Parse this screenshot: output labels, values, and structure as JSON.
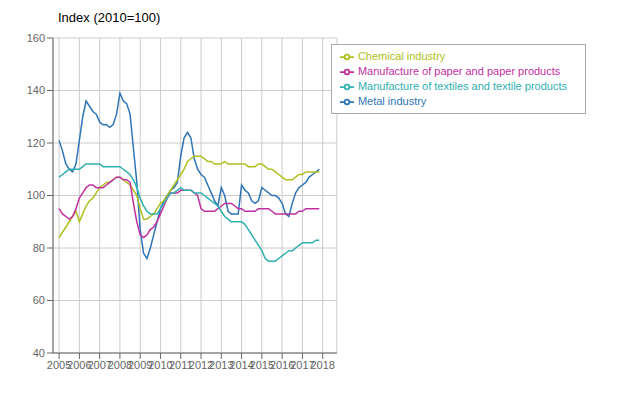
{
  "chart_data": {
    "type": "line",
    "title": "Index (2010=100)",
    "x": [
      2005,
      2005.1666666667,
      2005.3333333333,
      2005.5,
      2005.6666666667,
      2005.8333333333,
      2006,
      2006.1666666667,
      2006.3333333333,
      2006.5,
      2006.6666666667,
      2006.8333333333,
      2007,
      2007.1666666667,
      2007.3333333333,
      2007.5,
      2007.6666666667,
      2007.8333333333,
      2008,
      2008.1666666667,
      2008.3333333333,
      2008.5,
      2008.6666666667,
      2008.8333333333,
      2009,
      2009.1666666667,
      2009.3333333333,
      2009.5,
      2009.6666666667,
      2009.8333333333,
      2010,
      2010.1666666667,
      2010.3333333333,
      2010.5,
      2010.6666666667,
      2010.8333333333,
      2011,
      2011.1666666667,
      2011.3333333333,
      2011.5,
      2011.6666666667,
      2011.8333333333,
      2012,
      2012.1666666667,
      2012.3333333333,
      2012.5,
      2012.6666666667,
      2012.8333333333,
      2013,
      2013.1666666667,
      2013.3333333333,
      2013.5,
      2013.6666666667,
      2013.8333333333,
      2014,
      2014.1666666667,
      2014.3333333333,
      2014.5,
      2014.6666666667,
      2014.8333333333,
      2015,
      2015.1666666667,
      2015.3333333333,
      2015.5,
      2015.6666666667,
      2015.8333333333,
      2016,
      2016.1666666667,
      2016.3333333333,
      2016.5,
      2016.6666666667,
      2016.8333333333,
      2017,
      2017.1666666667,
      2017.3333333333,
      2017.5,
      2017.6666666667,
      2017.8333333333
    ],
    "xlim": [
      2004.7,
      2018.7
    ],
    "xticks": [
      2005,
      2006,
      2007,
      2008,
      2009,
      2010,
      2011,
      2012,
      2013,
      2014,
      2015,
      2016,
      2017,
      2018
    ],
    "ylim": [
      40,
      160
    ],
    "yticks": [
      40,
      60,
      80,
      100,
      120,
      140,
      160
    ],
    "grid": true,
    "legend": "upper right",
    "series": [
      {
        "name": "Metal industry",
        "color": "#2e75b6",
        "values": [
          121,
          117,
          112,
          110,
          109,
          112,
          121,
          130,
          136,
          134,
          132,
          131,
          128,
          127,
          127,
          126,
          127,
          131,
          139,
          136,
          135,
          131,
          118,
          105,
          87,
          78,
          76,
          80,
          85,
          90,
          95,
          98,
          100,
          102,
          103,
          105,
          115,
          122,
          124,
          122,
          114,
          110,
          108,
          107,
          104,
          101,
          98,
          96,
          103,
          100,
          94,
          93,
          93,
          93,
          104,
          102,
          101,
          98,
          97,
          98,
          103,
          102,
          101,
          100,
          100,
          99,
          97,
          93,
          92,
          97,
          101,
          103,
          104,
          105,
          107,
          108,
          109,
          110
        ]
      },
      {
        "name": "Chemical industry",
        "color": "#b0c020",
        "values": [
          84,
          86,
          88,
          90,
          92,
          94,
          90,
          93,
          96,
          98,
          99,
          101,
          103,
          104,
          105,
          105,
          106,
          107,
          107,
          106,
          105,
          104,
          102,
          100,
          95,
          91,
          91,
          92,
          93,
          95,
          97,
          98,
          100,
          102,
          104,
          106,
          108,
          110,
          113,
          114,
          115,
          115,
          115,
          114,
          113,
          113,
          112,
          112,
          112,
          113,
          112,
          112,
          112,
          112,
          112,
          112,
          111,
          111,
          111,
          112,
          112,
          111,
          110,
          110,
          109,
          108,
          107,
          106,
          106,
          106,
          107,
          108,
          108,
          109,
          109,
          109,
          109,
          109
        ]
      },
      {
        "name": "Manufacture of paper and paper products",
        "color": "#c030a0",
        "values": [
          95,
          93,
          92,
          91,
          92,
          95,
          99,
          101,
          103,
          104,
          104,
          103,
          103,
          103,
          104,
          105,
          106,
          107,
          107,
          106,
          106,
          105,
          97,
          90,
          85,
          84,
          85,
          87,
          88,
          90,
          93,
          96,
          99,
          101,
          101,
          101,
          102,
          102,
          102,
          102,
          101,
          100,
          95,
          94,
          94,
          94,
          94,
          95,
          96,
          97,
          97,
          97,
          96,
          95,
          95,
          94,
          94,
          94,
          94,
          95,
          95,
          95,
          95,
          94,
          93,
          93,
          93,
          93,
          93,
          93,
          93,
          94,
          94,
          95,
          95,
          95,
          95,
          95
        ]
      },
      {
        "name": "Manufacture of textiles and textile products",
        "color": "#30b0b0",
        "values": [
          107,
          108,
          109,
          110,
          110,
          110,
          110,
          111,
          112,
          112,
          112,
          112,
          112,
          111,
          111,
          111,
          111,
          111,
          111,
          110,
          109,
          108,
          106,
          103,
          99,
          96,
          94,
          93,
          93,
          93,
          95,
          97,
          99,
          101,
          101,
          102,
          103,
          102,
          102,
          102,
          101,
          101,
          101,
          100,
          99,
          98,
          97,
          96,
          94,
          92,
          91,
          90,
          90,
          90,
          90,
          89,
          87,
          85,
          83,
          81,
          79,
          76,
          75,
          75,
          75,
          76,
          77,
          78,
          79,
          79,
          80,
          81,
          82,
          82,
          82,
          82,
          83,
          83
        ]
      }
    ]
  }
}
